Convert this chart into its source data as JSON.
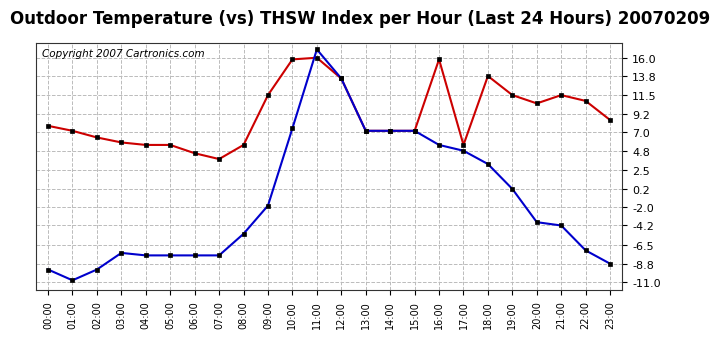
{
  "title": "Outdoor Temperature (vs) THSW Index per Hour (Last 24 Hours) 20070209",
  "copyright": "Copyright 2007 Cartronics.com",
  "hours": [
    "00:00",
    "01:00",
    "02:00",
    "03:00",
    "04:00",
    "05:00",
    "06:00",
    "07:00",
    "08:00",
    "09:00",
    "10:00",
    "11:00",
    "12:00",
    "13:00",
    "14:00",
    "15:00",
    "16:00",
    "17:00",
    "18:00",
    "19:00",
    "20:00",
    "21:00",
    "22:00",
    "23:00"
  ],
  "temp_red": [
    7.8,
    7.2,
    6.4,
    5.8,
    5.5,
    5.5,
    4.5,
    3.8,
    5.5,
    11.5,
    15.8,
    16.0,
    13.5,
    7.2,
    7.2,
    7.2,
    15.8,
    5.5,
    13.8,
    11.5,
    10.5,
    11.5,
    10.8,
    8.5
  ],
  "thsw_blue": [
    -9.5,
    -10.8,
    -9.5,
    -7.5,
    -7.8,
    -7.8,
    -7.8,
    -7.8,
    -5.2,
    -1.8,
    7.5,
    17.0,
    13.5,
    7.2,
    7.2,
    7.2,
    5.5,
    4.8,
    3.2,
    0.2,
    -3.8,
    -4.2,
    -7.2,
    -8.8
  ],
  "yticks": [
    16.0,
    13.8,
    11.5,
    9.2,
    7.0,
    4.8,
    2.5,
    0.2,
    -2.0,
    -4.2,
    -6.5,
    -8.8,
    -11.0
  ],
  "ylim": [
    -12.0,
    17.8
  ],
  "fig_bg": "#ffffff",
  "plot_bg": "#ffffff",
  "red_color": "#cc0000",
  "blue_color": "#0000cc",
  "grid_color": "#bbbbbb",
  "title_fontsize": 12,
  "copyright_fontsize": 7.5,
  "tick_fontsize": 8,
  "xtick_fontsize": 7
}
